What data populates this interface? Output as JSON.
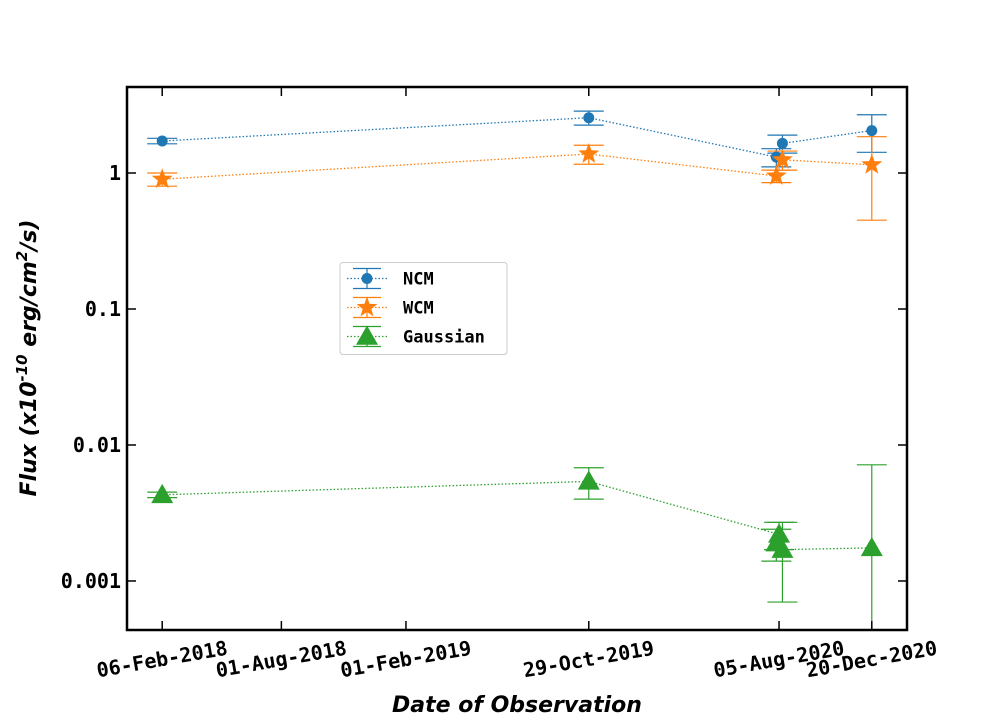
{
  "chart_data": {
    "type": "errorbar",
    "xlabel": "Date  of  Observation",
    "ylabel": [
      "Flux  (x10",
      "-10",
      "  erg/cm",
      "2",
      "/s)"
    ],
    "yscale": "log",
    "xlim": [
      "2017-12-16",
      "2021-02-10"
    ],
    "ylim": [
      0.000436,
      4.29
    ],
    "xticks": [
      {
        "value": "2018-02-06",
        "label": "06-Feb-2018"
      },
      {
        "value": "2018-08-01",
        "label": "01-Aug-2018"
      },
      {
        "value": "2019-02-01",
        "label": "01-Feb-2019"
      },
      {
        "value": "2019-10-29",
        "label": "29-Oct-2019"
      },
      {
        "value": "2020-08-05",
        "label": "05-Aug-2020"
      },
      {
        "value": "2020-12-20",
        "label": "20-Dec-2020"
      }
    ],
    "yticks": [
      0.001,
      0.01,
      0.1,
      1
    ],
    "legend": "center left",
    "series": [
      {
        "name": "NCM",
        "color": "#1f77b4",
        "marker": "circle",
        "x": [
          "2018-02-06",
          "2019-10-29",
          "2020-08-01",
          "2020-08-10",
          "2020-12-20"
        ],
        "values": [
          1.72,
          2.55,
          1.31,
          1.65,
          2.05
        ],
        "errors": [
          0.08,
          0.3,
          0.2,
          0.25,
          0.63
        ]
      },
      {
        "name": "WCM",
        "color": "#ff7f0e",
        "marker": "star",
        "x": [
          "2018-02-06",
          "2019-10-29",
          "2020-08-01",
          "2020-08-10",
          "2020-12-20"
        ],
        "values": [
          0.9,
          1.38,
          0.95,
          1.25,
          1.15
        ],
        "errors": [
          0.1,
          0.22,
          0.1,
          0.2,
          0.7
        ]
      },
      {
        "name": "Gaussian",
        "color": "#2ca02c",
        "marker": "triangle",
        "x": [
          "2018-02-06",
          "2019-10-29",
          "2020-08-05",
          "2020-08-01",
          "2020-08-10",
          "2020-12-20"
        ],
        "values": [
          0.0043,
          0.0054,
          0.0022,
          0.0019,
          0.0017,
          0.00175
        ],
        "errors": [
          0.0002,
          0.0014,
          0.0005,
          0.0005,
          0.001,
          0.0054
        ]
      }
    ]
  }
}
